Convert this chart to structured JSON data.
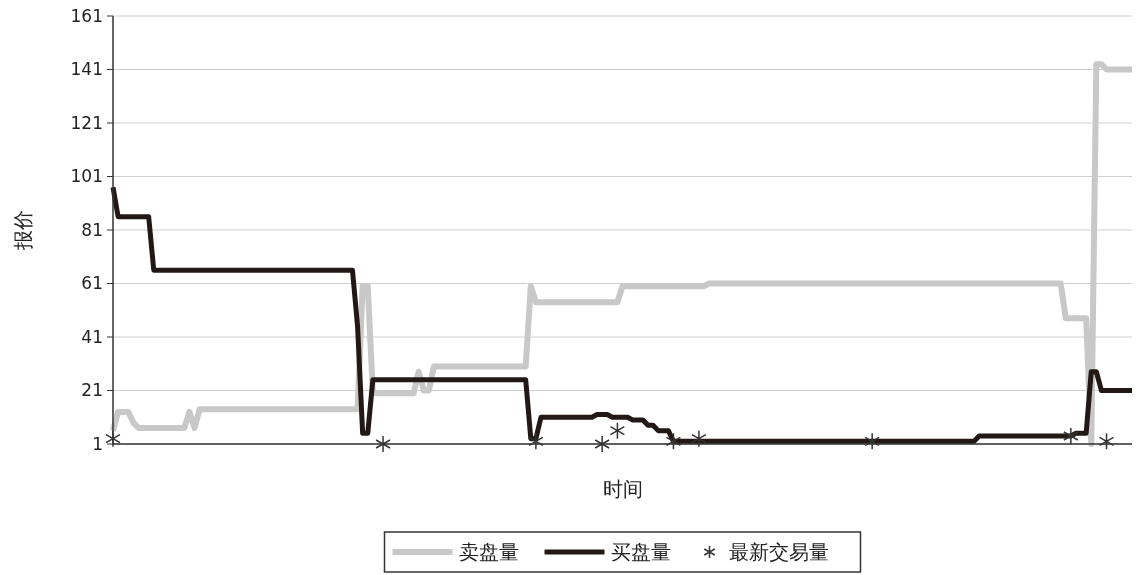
{
  "chart_data": {
    "type": "line",
    "xlabel": "时间",
    "ylabel": "报价",
    "ylim": [
      1,
      161
    ],
    "yticks": [
      1,
      21,
      41,
      61,
      81,
      101,
      121,
      141,
      161
    ],
    "tick_labels": "y",
    "grid": "y",
    "legend": "bottom",
    "categories": [
      null,
      null,
      null,
      null,
      null,
      null,
      null,
      null,
      null,
      null,
      null,
      null,
      null,
      null,
      null,
      null,
      null,
      null,
      null,
      null,
      null,
      null,
      null,
      null,
      null,
      null,
      null,
      null,
      null,
      null,
      null,
      null,
      null,
      null,
      null,
      null,
      null,
      null,
      null,
      null,
      null,
      null,
      null,
      null,
      null,
      null,
      null,
      null,
      null,
      null,
      null,
      null,
      null,
      null,
      null,
      null,
      null,
      null,
      null,
      null,
      null,
      null,
      null,
      null,
      null,
      null,
      null,
      null,
      null,
      null,
      null,
      null,
      null,
      null,
      null,
      null,
      null,
      null,
      null,
      null,
      null,
      null,
      null,
      null,
      null,
      null,
      null,
      null,
      null,
      null,
      null,
      null,
      null,
      null,
      null,
      null,
      null,
      null,
      null,
      null,
      null,
      null,
      null,
      null,
      null,
      null,
      null,
      null,
      null,
      null,
      null,
      null,
      null,
      null,
      null,
      null,
      null,
      null,
      null,
      null,
      null,
      null,
      null,
      null,
      null,
      null,
      null,
      null,
      null,
      null,
      null,
      null,
      null,
      null,
      null,
      null,
      null,
      null,
      null,
      null,
      null,
      null,
      null,
      null,
      null,
      null,
      null,
      null,
      null,
      null,
      null,
      null,
      null,
      null,
      null,
      null,
      null,
      null,
      null,
      null,
      null,
      null,
      null,
      null,
      null,
      null,
      null,
      null,
      null,
      null,
      null,
      null,
      null,
      null,
      null,
      null,
      null,
      null,
      null,
      null,
      null,
      null,
      null,
      null,
      null,
      null,
      null,
      null,
      null,
      null,
      null,
      null,
      null,
      null,
      null,
      null,
      null,
      null,
      null,
      null,
      null
    ],
    "series": [
      {
        "name": "卖盘量",
        "color": "#c8c8c8",
        "values": [
          6,
          13,
          13,
          13,
          9,
          7,
          7,
          7,
          7,
          7,
          7,
          7,
          7,
          7,
          7,
          13,
          7,
          14,
          14,
          14,
          14,
          14,
          14,
          14,
          14,
          14,
          14,
          14,
          14,
          14,
          14,
          14,
          14,
          14,
          14,
          14,
          14,
          14,
          14,
          14,
          14,
          14,
          14,
          14,
          14,
          14,
          14,
          14,
          14,
          60,
          60,
          20,
          20,
          20,
          20,
          20,
          20,
          20,
          20,
          20,
          28,
          21,
          21,
          30,
          30,
          30,
          30,
          30,
          30,
          30,
          30,
          30,
          30,
          30,
          30,
          30,
          30,
          30,
          30,
          30,
          30,
          30,
          60,
          54,
          54,
          54,
          54,
          54,
          54,
          54,
          54,
          54,
          54,
          54,
          54,
          54,
          54,
          54,
          54,
          54,
          60,
          60,
          60,
          60,
          60,
          60,
          60,
          60,
          60,
          60,
          60,
          60,
          60,
          60,
          60,
          60,
          60,
          61,
          61,
          61,
          61,
          61,
          61,
          61,
          61,
          61,
          61,
          61,
          61,
          61,
          61,
          61,
          61,
          61,
          61,
          61,
          61,
          61,
          61,
          61,
          61,
          61,
          61,
          61,
          61,
          61,
          61,
          61,
          61,
          61,
          61,
          61,
          61,
          61,
          61,
          61,
          61,
          61,
          61,
          61,
          61,
          61,
          61,
          61,
          61,
          61,
          61,
          61,
          61,
          61,
          61,
          61,
          61,
          61,
          61,
          61,
          61,
          61,
          61,
          61,
          61,
          61,
          61,
          61,
          61,
          61,
          61,
          48,
          48,
          48,
          48,
          48,
          1,
          143,
          143,
          141,
          141,
          141,
          141,
          141,
          141
        ]
      },
      {
        "name": "买盘量",
        "color": "#231815",
        "values": [
          97,
          86,
          86,
          86,
          86,
          86,
          86,
          86,
          66,
          66,
          66,
          66,
          66,
          66,
          66,
          66,
          66,
          66,
          66,
          66,
          66,
          66,
          66,
          66,
          66,
          66,
          66,
          66,
          66,
          66,
          66,
          66,
          66,
          66,
          66,
          66,
          66,
          66,
          66,
          66,
          66,
          66,
          66,
          66,
          66,
          66,
          66,
          66,
          45,
          5,
          5,
          25,
          25,
          25,
          25,
          25,
          25,
          25,
          25,
          25,
          25,
          25,
          25,
          25,
          25,
          25,
          25,
          25,
          25,
          25,
          25,
          25,
          25,
          25,
          25,
          25,
          25,
          25,
          25,
          25,
          25,
          25,
          3,
          3,
          11,
          11,
          11,
          11,
          11,
          11,
          11,
          11,
          11,
          11,
          11,
          12,
          12,
          12,
          11,
          11,
          11,
          11,
          10,
          10,
          10,
          8,
          8,
          6,
          6,
          6,
          2,
          2,
          2,
          2,
          2,
          2,
          2,
          2,
          2,
          2,
          2,
          2,
          2,
          2,
          2,
          2,
          2,
          2,
          2,
          2,
          2,
          2,
          2,
          2,
          2,
          2,
          2,
          2,
          2,
          2,
          2,
          2,
          2,
          2,
          2,
          2,
          2,
          2,
          2,
          2,
          2,
          2,
          2,
          2,
          2,
          2,
          2,
          2,
          2,
          2,
          2,
          2,
          2,
          2,
          2,
          2,
          2,
          2,
          2,
          2,
          4,
          4,
          4,
          4,
          4,
          4,
          4,
          4,
          4,
          4,
          4,
          4,
          4,
          4,
          4,
          4,
          4,
          4,
          4,
          5,
          5,
          5,
          28,
          28,
          21,
          21,
          21,
          21,
          21,
          21,
          21
        ]
      },
      {
        "name": "最新交易量",
        "type": "scatter",
        "marker": "cross",
        "color": "#333333",
        "values": [
          3,
          null,
          null,
          null,
          null,
          null,
          null,
          null,
          null,
          null,
          null,
          null,
          null,
          null,
          null,
          null,
          null,
          null,
          null,
          null,
          null,
          null,
          null,
          null,
          null,
          null,
          null,
          null,
          null,
          null,
          null,
          null,
          null,
          null,
          null,
          null,
          null,
          null,
          null,
          null,
          null,
          null,
          null,
          null,
          null,
          null,
          null,
          null,
          null,
          null,
          null,
          null,
          null,
          1,
          null,
          null,
          null,
          null,
          null,
          null,
          null,
          null,
          null,
          null,
          null,
          null,
          null,
          null,
          null,
          null,
          null,
          null,
          null,
          null,
          null,
          null,
          null,
          null,
          null,
          null,
          null,
          null,
          null,
          2,
          null,
          null,
          null,
          null,
          null,
          null,
          null,
          null,
          null,
          null,
          null,
          null,
          1,
          null,
          null,
          6,
          null,
          null,
          null,
          null,
          null,
          null,
          null,
          null,
          null,
          null,
          2,
          null,
          null,
          null,
          null,
          3,
          null,
          null,
          null,
          null,
          null,
          null,
          null,
          null,
          null,
          null,
          null,
          null,
          null,
          null,
          null,
          null,
          null,
          null,
          null,
          null,
          null,
          null,
          null,
          null,
          null,
          null,
          null,
          null,
          null,
          null,
          null,
          null,
          null,
          2,
          null,
          null,
          null,
          null,
          null,
          null,
          null,
          null,
          null,
          null,
          null,
          null,
          null,
          null,
          null,
          null,
          null,
          null,
          null,
          null,
          null,
          null,
          null,
          null,
          null,
          null,
          null,
          null,
          null,
          null,
          null,
          null,
          null,
          null,
          null,
          null,
          null,
          null,
          4,
          null,
          null,
          null,
          null,
          null,
          null,
          2,
          null,
          null,
          null,
          null,
          null
        ]
      }
    ]
  }
}
